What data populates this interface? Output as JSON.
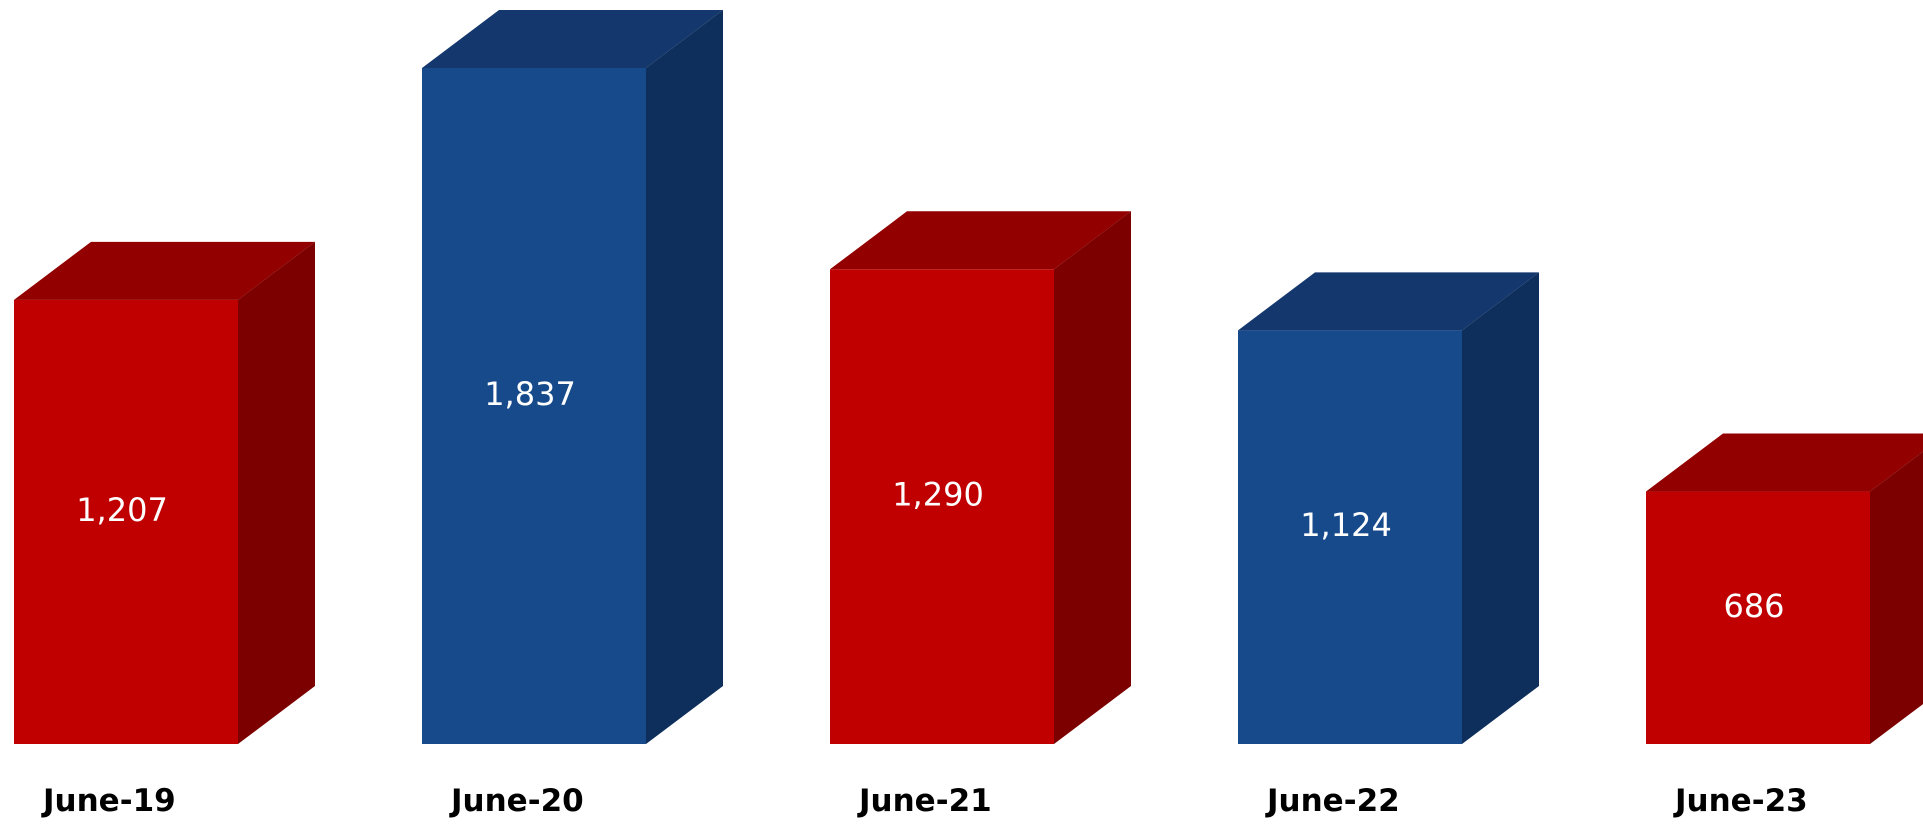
{
  "chart_data": {
    "type": "bar",
    "title": "",
    "xlabel": "",
    "ylabel": "",
    "categories": [
      "June-19",
      "June-20",
      "June-21",
      "June-22",
      "June-23"
    ],
    "values": [
      1207,
      1837,
      1290,
      1124,
      686
    ],
    "data_labels": [
      "1,207",
      "1,837",
      "1,290",
      "1,124",
      "686"
    ],
    "ylim": [
      0,
      1837
    ],
    "grid": false,
    "legend": "none",
    "style": "3d-column",
    "colors": {
      "red": {
        "front": "#c00000",
        "top": "#920000",
        "side": "#7c0000"
      },
      "blue": {
        "front": "#174a8b",
        "top": "#14386d",
        "side": "#0e2f5c"
      },
      "data_label": "#ffffff",
      "category_label": "#000000"
    },
    "bar_color_sequence": [
      "red",
      "blue",
      "red",
      "blue",
      "red"
    ]
  }
}
